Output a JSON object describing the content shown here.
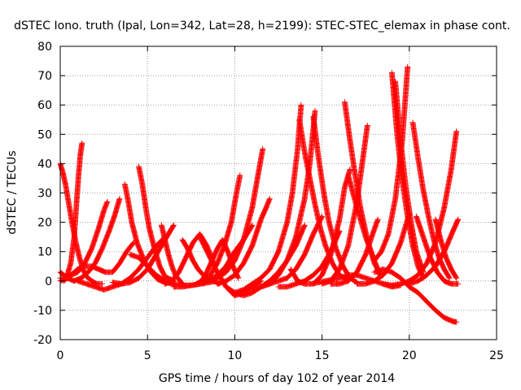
{
  "chart_data": {
    "type": "scatter",
    "title": "dSTEC Iono. truth (Ipal, Lon=342, Lat=28, h=2199): STEC-STEC_elemax in phase cont.",
    "xlabel": "GPS time / hours of day 102 of year 2014",
    "ylabel": "dSTEC  / TECUs",
    "xlim": [
      0,
      25
    ],
    "ylim": [
      -20,
      80
    ],
    "xticks": [
      0,
      5,
      10,
      15,
      20,
      25
    ],
    "yticks": [
      -20,
      -10,
      0,
      10,
      20,
      30,
      40,
      50,
      60,
      70,
      80
    ],
    "x_tick_labels": [
      "0",
      "5",
      "10",
      "15",
      "20",
      "25"
    ],
    "y_tick_labels": [
      "-20",
      "-10",
      "0",
      "10",
      "20",
      "30",
      "40",
      "50",
      "60",
      "70",
      "80"
    ],
    "grid": true,
    "legend": "none",
    "marker": "plus",
    "color": "#ff0000",
    "series": [
      {
        "x": [
          0.0,
          0.15,
          0.3,
          0.5,
          0.7,
          0.9,
          1.1,
          1.3,
          1.5,
          1.8,
          2.1,
          2.4
        ],
        "y": [
          40.0,
          37.0,
          33.0,
          26.0,
          19.0,
          13.0,
          8.0,
          4.0,
          1.5,
          0.0,
          -1.0,
          -1.0
        ]
      },
      {
        "x": [
          0.0,
          0.2,
          0.4,
          0.6,
          0.8,
          0.95,
          1.05,
          1.15,
          1.25
        ],
        "y": [
          0.0,
          0.5,
          2.0,
          6.0,
          15.0,
          28.0,
          36.0,
          43.0,
          47.0
        ]
      },
      {
        "x": [
          0.0,
          0.3,
          0.6,
          1.0,
          1.4,
          1.8,
          2.2,
          2.5,
          2.7
        ],
        "y": [
          1.0,
          1.0,
          2.0,
          3.0,
          6.0,
          11.0,
          18.0,
          24.0,
          27.0
        ]
      },
      {
        "x": [
          0.0,
          0.4,
          0.8,
          1.2,
          1.6,
          2.0,
          2.4,
          2.8,
          3.1,
          3.4
        ],
        "y": [
          3.0,
          1.0,
          0.0,
          1.0,
          3.0,
          6.0,
          11.0,
          17.0,
          22.0,
          28.0
        ]
      },
      {
        "x": [
          0.2,
          0.6,
          1.0,
          1.4,
          1.8,
          2.2,
          2.6,
          3.0,
          3.4,
          3.8,
          4.2
        ],
        "y": [
          0.0,
          2.0,
          4.0,
          5.0,
          5.0,
          4.0,
          3.0,
          3.0,
          6.0,
          10.0,
          13.0
        ]
      },
      {
        "x": [
          3.7,
          3.9,
          4.1,
          4.4,
          4.8,
          5.2,
          5.6,
          6.0,
          6.5
        ],
        "y": [
          33.0,
          27.0,
          20.0,
          13.0,
          7.0,
          3.0,
          0.5,
          -0.5,
          -1.0
        ]
      },
      {
        "x": [
          4.5,
          4.7,
          4.9,
          5.1,
          5.4,
          5.7,
          6.0,
          6.5
        ],
        "y": [
          39.0,
          33.0,
          25.0,
          18.0,
          11.0,
          5.0,
          1.5,
          0.0
        ]
      },
      {
        "x": [
          1.0,
          1.5,
          2.0,
          2.5,
          3.0,
          3.5,
          4.0,
          4.5,
          5.0,
          5.5,
          6.0
        ],
        "y": [
          0.0,
          -1.0,
          -2.0,
          -3.0,
          -2.0,
          -1.0,
          1.0,
          4.0,
          8.0,
          12.0,
          15.0
        ]
      },
      {
        "x": [
          3.0,
          3.5,
          4.0,
          4.5,
          5.0,
          5.5,
          6.0,
          6.5
        ],
        "y": [
          -0.5,
          -1.0,
          -0.5,
          1.0,
          4.0,
          9.0,
          14.0,
          19.0
        ]
      },
      {
        "x": [
          5.8,
          6.0,
          6.2,
          6.4,
          6.6,
          6.8,
          7.0
        ],
        "y": [
          19.0,
          14.0,
          9.0,
          5.0,
          2.0,
          0.5,
          -1.0
        ]
      },
      {
        "x": [
          4.0,
          4.5,
          5.0,
          5.5,
          6.0,
          6.5,
          7.0,
          7.5,
          8.0,
          8.5,
          9.0
        ],
        "y": [
          9.0,
          8.0,
          5.0,
          2.0,
          0.0,
          -1.0,
          -1.5,
          -1.5,
          -1.0,
          -0.5,
          0.0
        ]
      },
      {
        "x": [
          6.0,
          6.4,
          6.8,
          7.2,
          7.6,
          8.0,
          8.4,
          8.8
        ],
        "y": [
          -1.0,
          0.0,
          3.0,
          8.0,
          13.0,
          16.0,
          12.0,
          6.0
        ]
      },
      {
        "x": [
          7.0,
          7.3,
          7.6,
          7.9,
          8.2,
          8.5,
          8.8,
          9.1
        ],
        "y": [
          14.0,
          11.0,
          7.0,
          4.0,
          2.0,
          1.0,
          0.0,
          -1.0
        ]
      },
      {
        "x": [
          6.5,
          7.0,
          7.5,
          8.0,
          8.5,
          9.0,
          9.5,
          10.0,
          10.5,
          11.0
        ],
        "y": [
          -2.0,
          -2.0,
          -1.5,
          -1.0,
          0.0,
          2.0,
          5.0,
          10.0,
          14.0,
          19.0
        ]
      },
      {
        "x": [
          7.8,
          8.1,
          8.4,
          8.7,
          9.0,
          9.3,
          9.6,
          9.9,
          10.2
        ],
        "y": [
          -1.0,
          0.0,
          3.0,
          7.0,
          11.0,
          14.0,
          10.0,
          5.0,
          1.0
        ]
      },
      {
        "x": [
          8.0,
          8.5,
          9.0,
          9.5,
          10.0,
          10.5,
          11.0,
          11.5
        ],
        "y": [
          15.0,
          9.0,
          3.0,
          -2.0,
          -5.0,
          -4.0,
          -2.0,
          0.0
        ]
      },
      {
        "x": [
          8.2,
          8.6,
          9.0,
          9.4,
          9.8,
          10.1,
          10.3
        ],
        "y": [
          -1.0,
          2.0,
          6.0,
          12.0,
          20.0,
          30.0,
          36.0
        ]
      },
      {
        "x": [
          8.5,
          9.0,
          9.5,
          10.0,
          10.5,
          11.0,
          11.3,
          11.6
        ],
        "y": [
          0.0,
          1.0,
          3.0,
          7.0,
          14.0,
          25.0,
          35.0,
          45.0
        ]
      },
      {
        "x": [
          9.0,
          9.5,
          10.0,
          10.5,
          11.0,
          11.5,
          11.8,
          12.0
        ],
        "y": [
          -1.0,
          0.0,
          2.0,
          6.0,
          12.0,
          21.0,
          25.0,
          28.0
        ]
      },
      {
        "x": [
          9.5,
          10.0,
          10.5,
          11.0,
          11.5,
          12.0,
          12.5,
          13.0,
          13.5,
          14.0
        ],
        "y": [
          -2.0,
          -4.0,
          -5.0,
          -4.0,
          -2.0,
          0.0,
          3.0,
          7.0,
          12.0,
          19.0
        ]
      },
      {
        "x": [
          11.0,
          11.5,
          12.0,
          12.5,
          13.0,
          13.5,
          14.0,
          14.5,
          15.0
        ],
        "y": [
          -3.0,
          -2.0,
          -1.0,
          0.0,
          1.0,
          4.0,
          9.0,
          16.0,
          22.0
        ]
      },
      {
        "x": [
          10.0,
          10.5,
          11.0,
          11.5,
          12.0,
          12.5,
          13.0,
          13.3,
          13.6,
          13.8
        ],
        "y": [
          -4.0,
          -3.0,
          -1.0,
          1.0,
          4.0,
          10.0,
          20.0,
          30.0,
          45.0,
          60.0
        ]
      },
      {
        "x": [
          11.5,
          12.0,
          12.5,
          13.0,
          13.5,
          14.0,
          14.3,
          14.6
        ],
        "y": [
          -2.0,
          -1.0,
          2.0,
          7.0,
          15.0,
          28.0,
          40.0,
          58.0
        ]
      },
      {
        "x": [
          12.5,
          13.0,
          13.5,
          14.0,
          14.5,
          15.0,
          15.5,
          16.0
        ],
        "y": [
          -2.0,
          -2.0,
          -1.0,
          0.0,
          2.0,
          5.0,
          10.0,
          17.0
        ]
      },
      {
        "x": [
          13.2,
          13.6,
          14.0,
          14.4,
          14.8,
          15.2,
          15.6,
          16.0
        ],
        "y": [
          4.0,
          0.0,
          -1.0,
          -1.0,
          -0.5,
          0.0,
          0.5,
          1.0
        ]
      },
      {
        "x": [
          13.7,
          14.0,
          14.3,
          14.6,
          14.9,
          15.2,
          15.6,
          16.0,
          16.5
        ],
        "y": [
          55.0,
          44.0,
          35.0,
          26.0,
          18.0,
          12.0,
          6.0,
          2.0,
          0.0
        ]
      },
      {
        "x": [
          14.5,
          14.8,
          15.1,
          15.4,
          15.8,
          16.2,
          16.6,
          17.0
        ],
        "y": [
          56.0,
          42.0,
          30.0,
          20.0,
          11.0,
          5.0,
          1.0,
          -0.5
        ]
      },
      {
        "x": [
          14.5,
          15.0,
          15.5,
          16.0,
          16.3,
          16.6
        ],
        "y": [
          -1.0,
          2.0,
          9.0,
          21.0,
          32.0,
          38.0
        ]
      },
      {
        "x": [
          15.0,
          15.5,
          16.0,
          16.5,
          17.0,
          17.3,
          17.6
        ],
        "y": [
          -1.0,
          0.0,
          4.0,
          12.0,
          27.0,
          40.0,
          53.0
        ]
      },
      {
        "x": [
          16.3,
          16.6,
          16.9,
          17.2,
          17.6,
          18.0,
          18.4
        ],
        "y": [
          61.0,
          48.0,
          36.0,
          25.0,
          14.0,
          6.0,
          2.0
        ]
      },
      {
        "x": [
          16.5,
          17.0,
          17.5,
          18.0,
          18.3
        ],
        "y": [
          36.0,
          25.0,
          15.0,
          7.0,
          2.0
        ]
      },
      {
        "x": [
          15.5,
          16.0,
          16.5,
          17.0,
          17.5,
          17.9,
          18.2
        ],
        "y": [
          -1.0,
          -1.0,
          0.0,
          3.0,
          9.0,
          16.0,
          21.0
        ]
      },
      {
        "x": [
          16.0,
          16.5,
          17.0,
          17.5,
          18.0,
          18.5,
          19.0,
          19.5
        ],
        "y": [
          1.0,
          2.0,
          2.0,
          1.0,
          0.0,
          -1.0,
          -2.0,
          -1.5
        ]
      },
      {
        "x": [
          17.0,
          17.5,
          18.0,
          18.5,
          19.0,
          19.5,
          20.0
        ],
        "y": [
          -1.0,
          -1.0,
          0.0,
          2.0,
          6.0,
          13.0,
          23.0
        ]
      },
      {
        "x": [
          18.0,
          18.4,
          18.8,
          19.2,
          19.6,
          19.9
        ],
        "y": [
          7.0,
          10.0,
          16.0,
          28.0,
          48.0,
          73.0
        ]
      },
      {
        "x": [
          19.0,
          19.3,
          19.6,
          19.9,
          20.2,
          20.5,
          20.8
        ],
        "y": [
          71.0,
          50.0,
          34.0,
          22.0,
          12.0,
          5.0,
          1.0
        ]
      },
      {
        "x": [
          19.2,
          19.5,
          19.8,
          20.1,
          20.4,
          20.8
        ],
        "y": [
          68.0,
          48.0,
          32.0,
          20.0,
          10.0,
          3.0
        ]
      },
      {
        "x": [
          20.2,
          20.5,
          20.8,
          21.1,
          21.4,
          21.7,
          22.0,
          22.3
        ],
        "y": [
          54.0,
          42.0,
          31.0,
          22.0,
          14.0,
          8.0,
          4.0,
          1.0
        ]
      },
      {
        "x": [
          20.4,
          20.8,
          21.2,
          21.6,
          22.0,
          22.4,
          22.8
        ],
        "y": [
          22.0,
          15.0,
          8.0,
          3.0,
          0.0,
          -1.0,
          -1.0
        ]
      },
      {
        "x": [
          18.5,
          19.0,
          19.5,
          20.0,
          20.5,
          21.0,
          21.5,
          22.0,
          22.4,
          22.7
        ],
        "y": [
          -1.0,
          -1.5,
          -1.0,
          0.0,
          2.0,
          6.0,
          13.0,
          25.0,
          38.0,
          51.0
        ]
      },
      {
        "x": [
          18.0,
          18.5,
          19.0,
          19.5,
          20.0,
          20.5,
          21.0,
          21.5,
          22.0,
          22.5,
          22.7
        ],
        "y": [
          3.0,
          4.0,
          3.0,
          1.0,
          -2.0,
          -4.0,
          -7.0,
          -10.0,
          -12.5,
          -13.8,
          -14.0
        ]
      },
      {
        "x": [
          21.5,
          21.8,
          22.1,
          22.4,
          22.7
        ],
        "y": [
          21.0,
          14.0,
          8.0,
          4.0,
          1.0
        ]
      },
      {
        "x": [
          20.0,
          20.5,
          21.0,
          21.5,
          22.0,
          22.5,
          22.8
        ],
        "y": [
          -1.0,
          0.0,
          2.0,
          5.0,
          10.0,
          17.0,
          21.0
        ]
      }
    ]
  }
}
